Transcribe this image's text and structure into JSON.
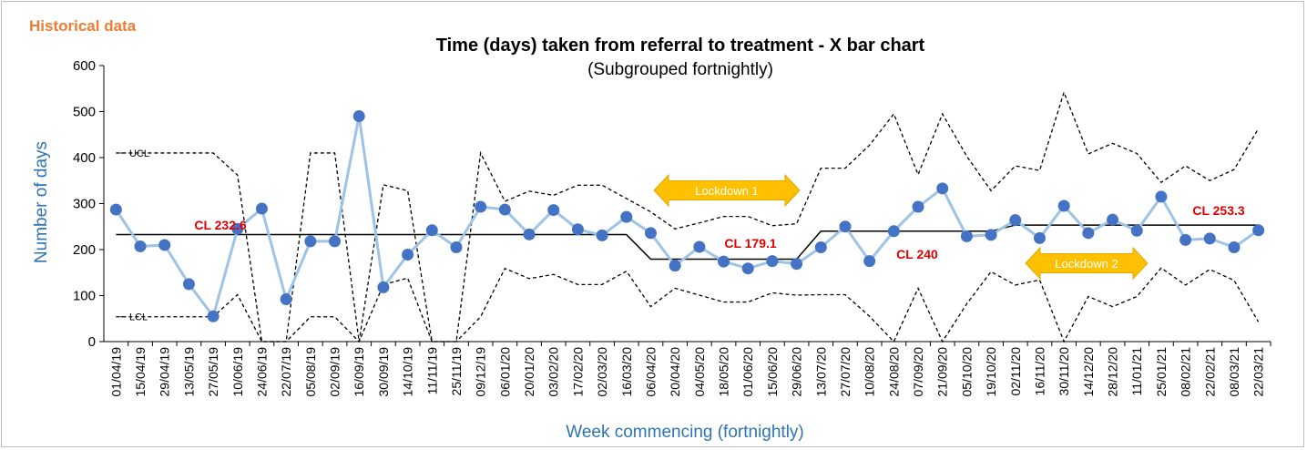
{
  "header": "Historical data",
  "chart_data": {
    "type": "line",
    "title": "Time (days) taken from referral to treatment - X bar chart",
    "subtitle": "(Subgrouped fortnightly)",
    "xlabel": "Week commencing (fortnightly)",
    "ylabel": "Number of days",
    "ylim": [
      0,
      600
    ],
    "yticks": [
      0,
      100,
      200,
      300,
      400,
      500,
      600
    ],
    "grid": false,
    "categories": [
      "01/04/19",
      "15/04/19",
      "29/04/19",
      "13/05/19",
      "27/05/19",
      "10/06/19",
      "24/06/19",
      "22/07/19",
      "05/08/19",
      "02/09/19",
      "16/09/19",
      "30/09/19",
      "14/10/19",
      "11/11/19",
      "25/11/19",
      "09/12/19",
      "06/01/20",
      "20/01/20",
      "03/02/20",
      "17/02/20",
      "02/03/20",
      "16/03/20",
      "06/04/20",
      "20/04/20",
      "04/05/20",
      "18/05/20",
      "01/06/20",
      "15/06/20",
      "29/06/20",
      "13/07/20",
      "27/07/20",
      "10/08/20",
      "24/08/20",
      "07/09/20",
      "21/09/20",
      "05/10/20",
      "19/10/20",
      "02/11/20",
      "16/11/20",
      "30/11/20",
      "14/12/20",
      "28/12/20",
      "11/01/21",
      "25/01/21",
      "08/02/21",
      "22/02/21",
      "08/03/21",
      "22/03/21"
    ],
    "series": [
      {
        "role": "mean",
        "color": "#9dc3e6",
        "marker_color": "#4472c4",
        "values": [
          287,
          207,
          210,
          125,
          55,
          245,
          289,
          92,
          218,
          218,
          490,
          118,
          189,
          242,
          205,
          293,
          287,
          233,
          286,
          244,
          231,
          271,
          236,
          165,
          206,
          174,
          159,
          175,
          169,
          205,
          250,
          175,
          240,
          293,
          333,
          229,
          232,
          264,
          225,
          295,
          236,
          265,
          241,
          315,
          221,
          224,
          205,
          242
        ]
      },
      {
        "role": "centre-line",
        "color": "#000000",
        "values": [
          232.6,
          232.6,
          232.6,
          232.6,
          232.6,
          232.6,
          232.6,
          232.6,
          232.6,
          232.6,
          232.6,
          232.6,
          232.6,
          232.6,
          232.6,
          232.6,
          232.6,
          232.6,
          232.6,
          232.6,
          232.6,
          232.6,
          179.1,
          179.1,
          179.1,
          179.1,
          179.1,
          179.1,
          179.1,
          240,
          240,
          240,
          240,
          240,
          240,
          240,
          240,
          253.3,
          253.3,
          253.3,
          253.3,
          253.3,
          253.3,
          253.3,
          253.3,
          253.3,
          253.3,
          253.3
        ]
      },
      {
        "name": "UCL",
        "role": "upper-limit",
        "color": "#000000",
        "values": [
          410,
          410,
          410,
          410,
          410,
          362,
          0,
          0,
          410,
          410,
          0,
          341,
          328,
          0,
          0,
          410,
          305,
          327,
          318,
          340,
          340,
          311,
          282,
          245,
          258,
          272,
          272,
          252,
          256,
          377,
          377,
          427,
          495,
          363,
          495,
          403,
          328,
          382,
          372,
          542,
          408,
          431,
          409,
          346,
          382,
          350,
          374,
          463
        ]
      },
      {
        "name": "LCL",
        "role": "lower-limit",
        "color": "#000000",
        "values": [
          54,
          54,
          54,
          54,
          54,
          102,
          0,
          0,
          54,
          54,
          0,
          124,
          138,
          0,
          0,
          54,
          159,
          137,
          146,
          124,
          124,
          153,
          76,
          116,
          101,
          86,
          86,
          106,
          101,
          102,
          102,
          55,
          0,
          116,
          0,
          82,
          152,
          123,
          134,
          0,
          98,
          76,
          98,
          160,
          123,
          157,
          133,
          43
        ]
      }
    ],
    "annotations": {
      "cl_labels": [
        "CL 232.6",
        "CL 179.1",
        "CL 240",
        "CL 253.3"
      ],
      "ucl_label": "UCL",
      "lcl_label": "LCL",
      "lockdowns": [
        "Lockdown 1",
        "Lockdown 2"
      ],
      "lockdown_color": "#ffc000"
    }
  }
}
